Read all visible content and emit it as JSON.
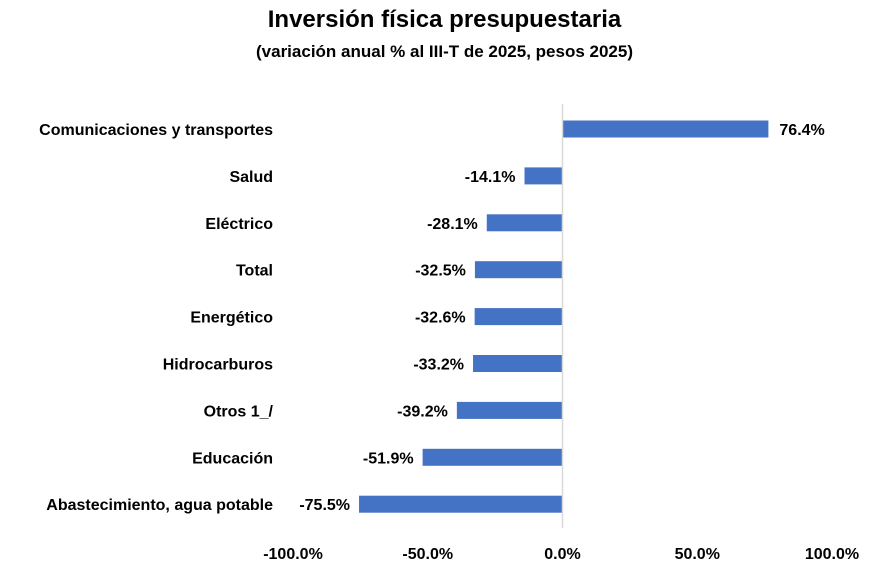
{
  "chart_data": {
    "type": "bar",
    "orientation": "horizontal",
    "title": "Inversión física presupuestaria",
    "subtitle": "(variación anual % al III-T de 2025, pesos 2025)",
    "categories": [
      "Comunicaciones y transportes",
      "Salud",
      "Eléctrico",
      "Total",
      "Energético",
      "Hidrocarburos",
      "Otros 1_/",
      "Educación",
      "Abastecimiento, agua potable"
    ],
    "values": [
      76.4,
      -14.1,
      -28.1,
      -32.5,
      -32.6,
      -33.2,
      -39.2,
      -51.9,
      -75.5
    ],
    "value_labels": [
      "76.4%",
      "-14.1%",
      "-28.1%",
      "-32.5%",
      "-32.6%",
      "-33.2%",
      "-39.2%",
      "-51.9%",
      "-75.5%"
    ],
    "xlim": [
      -100,
      100
    ],
    "x_ticks": [
      -100,
      -50,
      0,
      50,
      100
    ],
    "x_tick_labels": [
      "-100.0%",
      "-50.0%",
      "0.0%",
      "50.0%",
      "100.0%"
    ],
    "grid": false,
    "bar_color": "#4472C4",
    "zero_line_color": "#D9D9D9"
  }
}
